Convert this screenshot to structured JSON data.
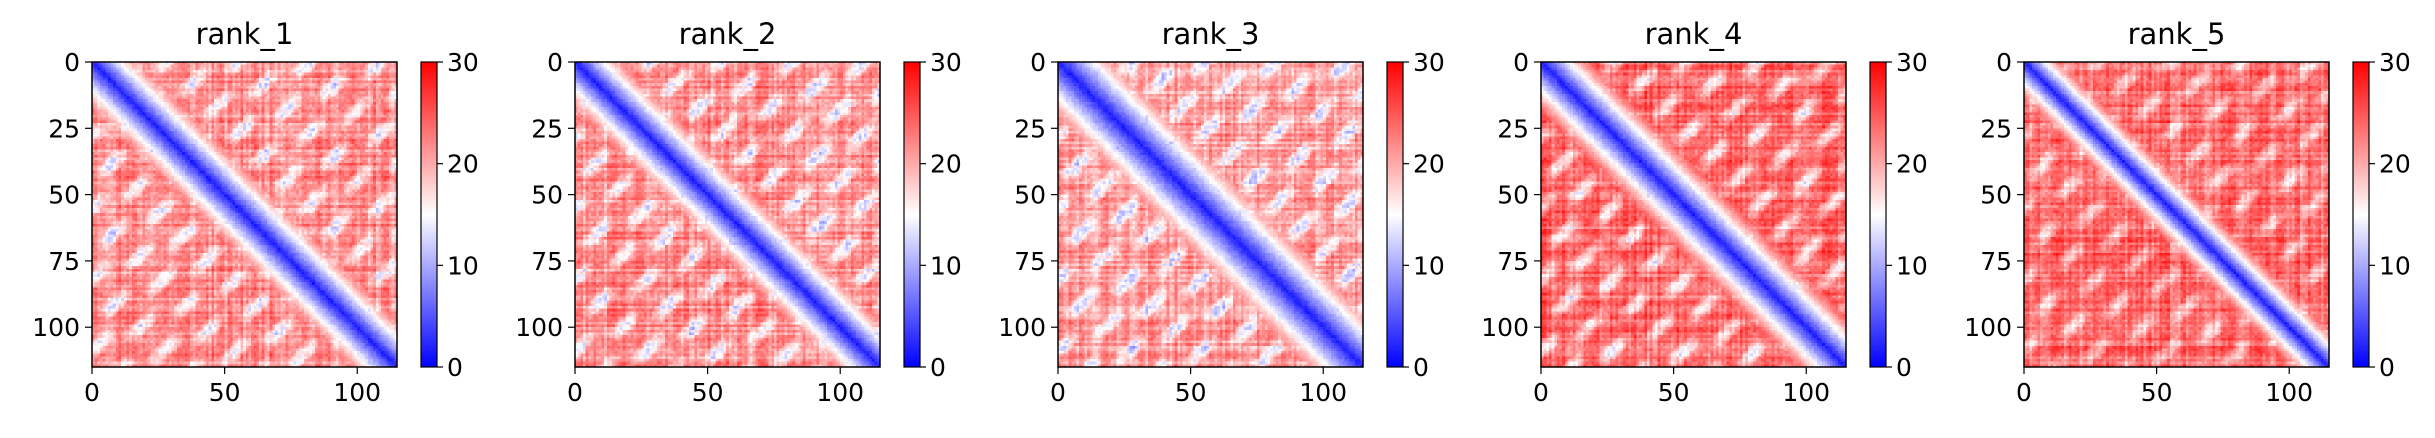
{
  "figure": {
    "background": "#ffffff"
  },
  "chart_data": [
    {
      "type": "heatmap",
      "title": "rank_1",
      "xlim": [
        0,
        115
      ],
      "ylim": [
        115,
        0
      ],
      "xticks": [
        0,
        50,
        100
      ],
      "yticks": [
        0,
        25,
        50,
        75,
        100
      ],
      "colorbar": {
        "min": 0,
        "max": 30,
        "ticks": [
          0,
          10,
          20,
          30
        ],
        "colormap": "bwr",
        "colors": [
          "#0000ff",
          "#ffffff",
          "#ff0000"
        ]
      },
      "pattern": {
        "n": 115,
        "diag_band_width": 4,
        "off_diag_period": 50,
        "blob_strength": 0.55,
        "base_level": 22,
        "seed": 11
      }
    },
    {
      "type": "heatmap",
      "title": "rank_2",
      "xlim": [
        0,
        115
      ],
      "ylim": [
        115,
        0
      ],
      "xticks": [
        0,
        50,
        100
      ],
      "yticks": [
        0,
        25,
        50,
        75,
        100
      ],
      "colorbar": {
        "min": 0,
        "max": 30,
        "ticks": [
          0,
          10,
          20,
          30
        ],
        "colormap": "bwr",
        "colors": [
          "#0000ff",
          "#ffffff",
          "#ff0000"
        ]
      },
      "pattern": {
        "n": 115,
        "diag_band_width": 4,
        "off_diag_period": 50,
        "blob_strength": 0.6,
        "base_level": 22,
        "seed": 23
      }
    },
    {
      "type": "heatmap",
      "title": "rank_3",
      "xlim": [
        0,
        115
      ],
      "ylim": [
        115,
        0
      ],
      "xticks": [
        0,
        50,
        100
      ],
      "yticks": [
        0,
        25,
        50,
        75,
        100
      ],
      "colorbar": {
        "min": 0,
        "max": 30,
        "ticks": [
          0,
          10,
          20,
          30
        ],
        "colormap": "bwr",
        "colors": [
          "#0000ff",
          "#ffffff",
          "#ff0000"
        ]
      },
      "pattern": {
        "n": 115,
        "diag_band_width": 5,
        "off_diag_period": 50,
        "blob_strength": 0.6,
        "base_level": 21,
        "seed": 37
      }
    },
    {
      "type": "heatmap",
      "title": "rank_4",
      "xlim": [
        0,
        115
      ],
      "ylim": [
        115,
        0
      ],
      "xticks": [
        0,
        50,
        100
      ],
      "yticks": [
        0,
        25,
        50,
        75,
        100
      ],
      "colorbar": {
        "min": 0,
        "max": 30,
        "ticks": [
          0,
          10,
          20,
          30
        ],
        "colormap": "bwr",
        "colors": [
          "#0000ff",
          "#ffffff",
          "#ff0000"
        ]
      },
      "pattern": {
        "n": 115,
        "diag_band_width": 4,
        "off_diag_period": 50,
        "blob_strength": 0.6,
        "base_level": 24,
        "seed": 41
      }
    },
    {
      "type": "heatmap",
      "title": "rank_5",
      "xlim": [
        0,
        115
      ],
      "ylim": [
        115,
        0
      ],
      "xticks": [
        0,
        50,
        100
      ],
      "yticks": [
        0,
        25,
        50,
        75,
        100
      ],
      "colorbar": {
        "min": 0,
        "max": 30,
        "ticks": [
          0,
          10,
          20,
          30
        ],
        "colormap": "bwr",
        "colors": [
          "#0000ff",
          "#ffffff",
          "#ff0000"
        ]
      },
      "pattern": {
        "n": 115,
        "diag_band_width": 3,
        "off_diag_period": 50,
        "blob_strength": 0.45,
        "base_level": 24,
        "seed": 53
      }
    }
  ]
}
